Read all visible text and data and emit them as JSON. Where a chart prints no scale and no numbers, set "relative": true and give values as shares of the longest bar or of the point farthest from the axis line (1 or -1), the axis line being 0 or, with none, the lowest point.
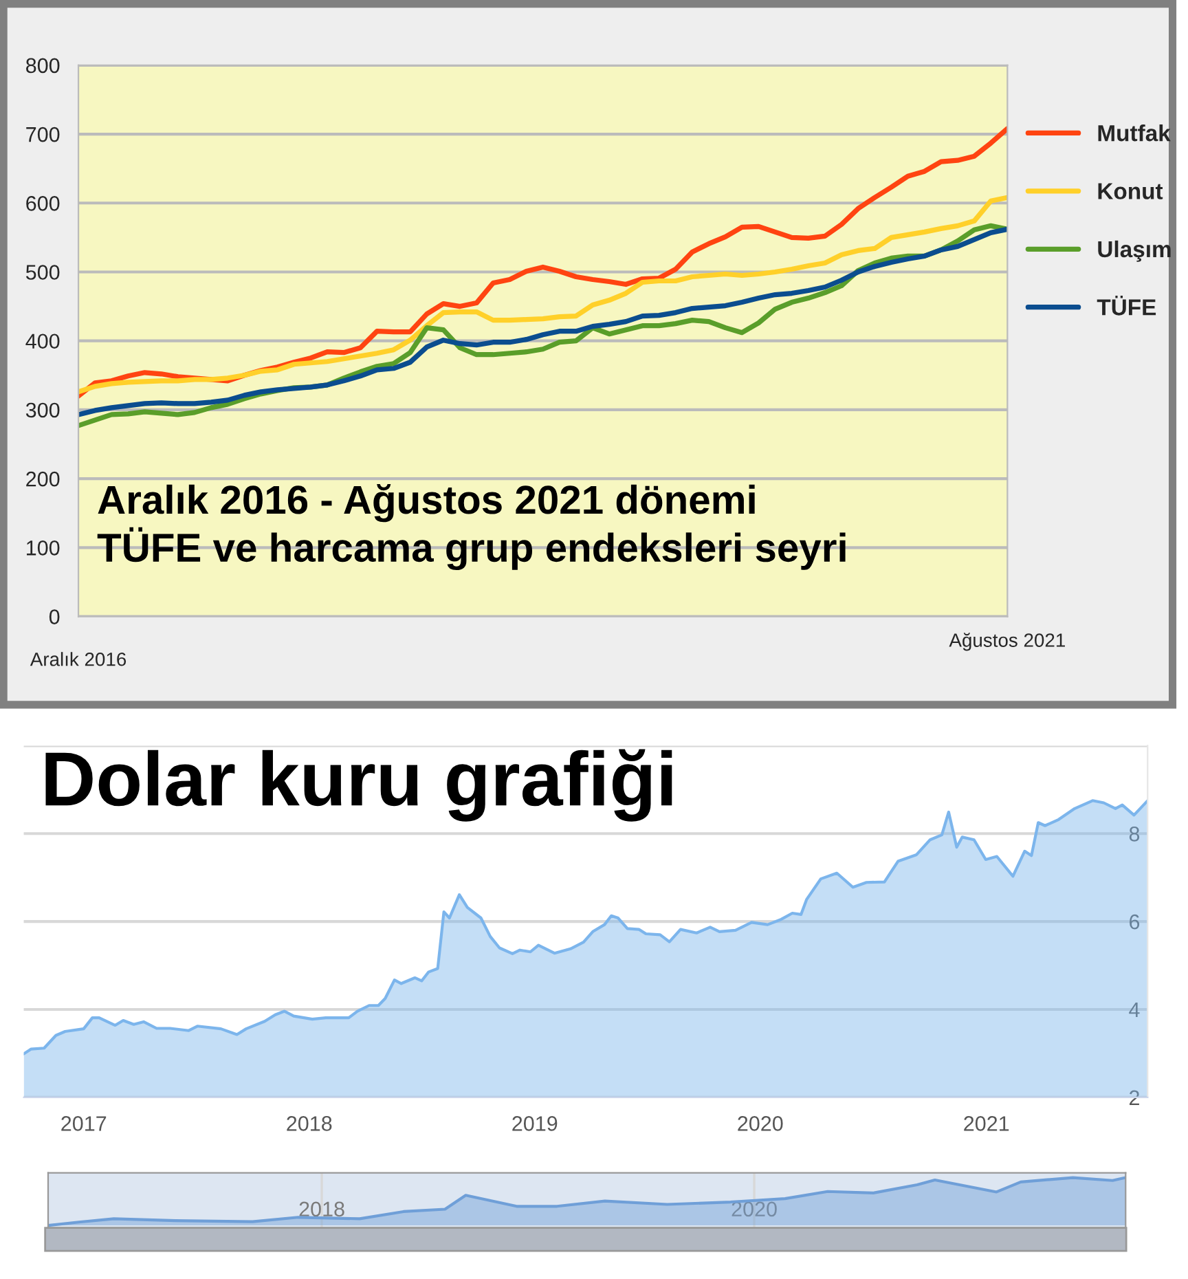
{
  "chart_data": [
    {
      "type": "line",
      "title": "Aralık 2016 - Ağustos 2021 dönemi\nTÜFE ve harcama grup endeksleri seyri",
      "categories": [
        "Aralık 2016",
        null,
        null,
        null,
        null,
        null,
        null,
        null,
        null,
        null,
        null,
        null,
        null,
        null,
        null,
        null,
        null,
        null,
        null,
        null,
        null,
        null,
        null,
        null,
        null,
        null,
        null,
        null,
        null,
        null,
        null,
        null,
        null,
        null,
        null,
        null,
        null,
        null,
        null,
        null,
        null,
        null,
        null,
        null,
        null,
        null,
        null,
        null,
        null,
        null,
        null,
        null,
        null,
        null,
        null,
        null,
        "Ağustos 2021"
      ],
      "series": [
        {
          "name": "Mutfak",
          "color": "#ff4411",
          "values": [
            320,
            339,
            342,
            349,
            354,
            352,
            348,
            346,
            344,
            342,
            350,
            357,
            362,
            369,
            375,
            384,
            383,
            390,
            414,
            413,
            413,
            439,
            454,
            450,
            455,
            484,
            489,
            501,
            507,
            501,
            493,
            489,
            486,
            482,
            490,
            491,
            504,
            529,
            541,
            551,
            565,
            566,
            558,
            550,
            549,
            552,
            569,
            592,
            608,
            623,
            639,
            646,
            660,
            662,
            668,
            687,
            708
          ]
        },
        {
          "name": "Konut",
          "color": "#ffd02a",
          "values": [
            326,
            334,
            338,
            340,
            341,
            342,
            342,
            344,
            344,
            346,
            350,
            356,
            358,
            366,
            368,
            370,
            374,
            378,
            382,
            387,
            401,
            422,
            441,
            442,
            442,
            430,
            430,
            431,
            432,
            435,
            436,
            452,
            459,
            469,
            485,
            487,
            487,
            493,
            495,
            497,
            495,
            497,
            500,
            504,
            509,
            513,
            525,
            531,
            534,
            550,
            554,
            558,
            563,
            567,
            574,
            603,
            608
          ]
        },
        {
          "name": "Ulaşım",
          "color": "#5a9e2a",
          "values": [
            277,
            285,
            293,
            294,
            297,
            295,
            293,
            296,
            303,
            308,
            316,
            323,
            328,
            332,
            333,
            336,
            346,
            355,
            363,
            367,
            383,
            419,
            416,
            390,
            380,
            380,
            382,
            384,
            388,
            398,
            400,
            419,
            410,
            416,
            422,
            422,
            425,
            430,
            428,
            419,
            412,
            426,
            446,
            456,
            462,
            470,
            480,
            502,
            513,
            520,
            523,
            523,
            532,
            545,
            561,
            567,
            562
          ]
        },
        {
          "name": "TÜFE",
          "color": "#0b4d8f",
          "values": [
            293,
            299,
            303,
            306,
            309,
            310,
            309,
            309,
            311,
            314,
            321,
            326,
            329,
            331,
            333,
            336,
            342,
            349,
            358,
            360,
            369,
            391,
            401,
            396,
            394,
            398,
            398,
            402,
            409,
            414,
            414,
            421,
            424,
            428,
            436,
            437,
            441,
            447,
            449,
            451,
            456,
            462,
            467,
            469,
            473,
            478,
            488,
            500,
            508,
            514,
            519,
            523,
            532,
            537,
            547,
            557,
            562
          ]
        }
      ],
      "ylim": [
        0,
        800
      ],
      "yticks": [
        0,
        100,
        200,
        300,
        400,
        500,
        600,
        700,
        800
      ],
      "grid": "y",
      "legend": "right"
    },
    {
      "type": "area",
      "title": "Dolar kuru grafiği",
      "x": [
        "2016-09-26",
        "2016-10-08",
        "2016-10-29",
        "2016-11-17",
        "2016-12-02",
        "2017-01-01",
        "2017-01-15",
        "2017-01-26",
        "2017-02-21",
        "2017-03-06",
        "2017-03-23",
        "2017-04-08",
        "2017-04-29",
        "2017-05-21",
        "2017-06-20",
        "2017-07-04",
        "2017-08-11",
        "2017-09-06",
        "2017-09-21",
        "2017-10-21",
        "2017-11-07",
        "2017-11-22",
        "2017-12-07",
        "2018-01-06",
        "2018-01-28",
        "2018-03-06",
        "2018-03-20",
        "2018-04-08",
        "2018-04-23",
        "2018-05-04",
        "2018-05-19",
        "2018-05-30",
        "2018-06-21",
        "2018-07-02",
        "2018-07-13",
        "2018-07-28",
        "2018-08-07",
        "2018-08-16",
        "2018-09-01",
        "2018-09-14",
        "2018-10-06",
        "2018-10-21",
        "2018-11-05",
        "2018-11-26",
        "2018-12-08",
        "2018-12-25",
        "2019-01-07",
        "2019-02-02",
        "2019-02-28",
        "2019-03-21",
        "2019-04-05",
        "2019-04-24",
        "2019-05-05",
        "2019-05-16",
        "2019-05-31",
        "2019-06-19",
        "2019-06-30",
        "2019-07-23",
        "2019-08-07",
        "2019-08-25",
        "2019-09-20",
        "2019-10-12",
        "2019-10-27",
        "2019-11-22",
        "2019-12-18",
        "2020-01-13",
        "2020-02-04",
        "2020-02-22",
        "2020-03-07",
        "2020-03-16",
        "2020-04-08",
        "2020-05-04",
        "2020-05-30",
        "2020-06-21",
        "2020-07-20",
        "2020-08-11",
        "2020-09-10",
        "2020-10-02",
        "2020-10-21",
        "2020-11-01",
        "2020-11-14",
        "2020-11-23",
        "2020-12-12",
        "2020-12-31",
        "2021-01-18",
        "2021-02-13",
        "2021-03-04",
        "2021-03-15",
        "2021-03-26",
        "2021-04-06",
        "2021-04-28",
        "2021-05-24",
        "2021-06-22",
        "2021-07-10",
        "2021-07-29",
        "2021-08-09",
        "2021-08-28",
        "2021-09-19"
      ],
      "series": [
        {
          "color": "#7cb5ec",
          "values": [
            2.99,
            3.1,
            3.12,
            3.41,
            3.5,
            3.56,
            3.81,
            3.81,
            3.64,
            3.75,
            3.66,
            3.72,
            3.57,
            3.57,
            3.52,
            3.62,
            3.56,
            3.43,
            3.56,
            3.73,
            3.88,
            3.96,
            3.85,
            3.78,
            3.81,
            3.81,
            3.96,
            4.09,
            4.09,
            4.25,
            4.67,
            4.59,
            4.72,
            4.65,
            4.85,
            4.93,
            6.22,
            6.08,
            6.61,
            6.32,
            6.08,
            5.66,
            5.4,
            5.27,
            5.35,
            5.31,
            5.46,
            5.28,
            5.38,
            5.53,
            5.77,
            5.93,
            6.13,
            6.08,
            5.84,
            5.82,
            5.72,
            5.7,
            5.54,
            5.82,
            5.74,
            5.87,
            5.77,
            5.8,
            5.98,
            5.93,
            6.05,
            6.19,
            6.16,
            6.5,
            6.97,
            7.1,
            6.78,
            6.89,
            6.9,
            7.37,
            7.52,
            7.86,
            7.97,
            8.49,
            7.69,
            7.92,
            7.86,
            7.41,
            7.48,
            7.03,
            7.6,
            7.5,
            8.25,
            8.18,
            8.32,
            8.57,
            8.75,
            8.7,
            8.57,
            8.65,
            8.42,
            8.75
          ]
        }
      ],
      "xlim": [
        "2016-09-26",
        "2021-09-19"
      ],
      "xticks": [
        "2017",
        "2018",
        "2019",
        "2020",
        "2021"
      ],
      "ylim": [
        2,
        10
      ],
      "yticks": [
        2,
        4,
        6,
        8,
        {
          "value": 10,
          "label": null
        }
      ],
      "grid": "y"
    },
    {
      "type": "area",
      "relative": true,
      "x": [
        "2016-09-26",
        "2016-11-17",
        "2017-01-15",
        "2017-04-29",
        "2017-09-06",
        "2017-11-22",
        "2018-03-06",
        "2018-05-19",
        "2018-07-28",
        "2018-09-01",
        "2018-11-26",
        "2019-02-02",
        "2019-04-24",
        "2019-08-07",
        "2019-11-22",
        "2020-02-22",
        "2020-05-04",
        "2020-07-20",
        "2020-10-02",
        "2020-11-01",
        "2021-02-13",
        "2021-03-26",
        "2021-06-22",
        "2021-08-28",
        "2021-09-19"
      ],
      "series": [
        {
          "color": "#6f9fd8",
          "values": [
            0,
            0.07,
            0.14,
            0.1,
            0.08,
            0.17,
            0.14,
            0.29,
            0.34,
            0.63,
            0.4,
            0.4,
            0.51,
            0.44,
            0.49,
            0.56,
            0.71,
            0.68,
            0.85,
            0.95,
            0.7,
            0.91,
            1,
            0.94,
            1
          ]
        }
      ],
      "xlim": [
        "2016-09-26",
        "2021-09-19"
      ],
      "xticks": [
        "2018",
        "2020"
      ],
      "grid": "x",
      "tick_labels": "x"
    }
  ]
}
